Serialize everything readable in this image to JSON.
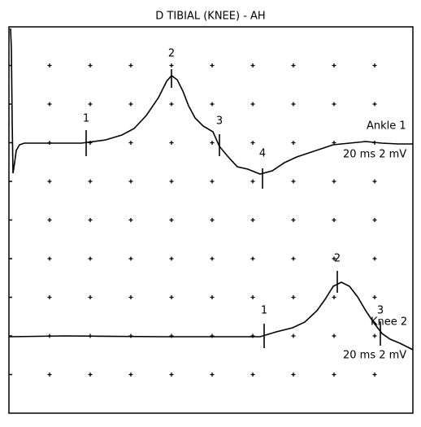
{
  "header": {
    "title": "D TIBIAL (KNEE) - AH"
  },
  "traces": [
    {
      "label": "Ankle 1",
      "scale": "20 ms 2 mV",
      "markers": [
        "1",
        "2",
        "3",
        "4"
      ]
    },
    {
      "label": "Knee 2",
      "scale": "20 ms 2 mV",
      "markers": [
        "1",
        "2",
        "3"
      ]
    }
  ]
}
